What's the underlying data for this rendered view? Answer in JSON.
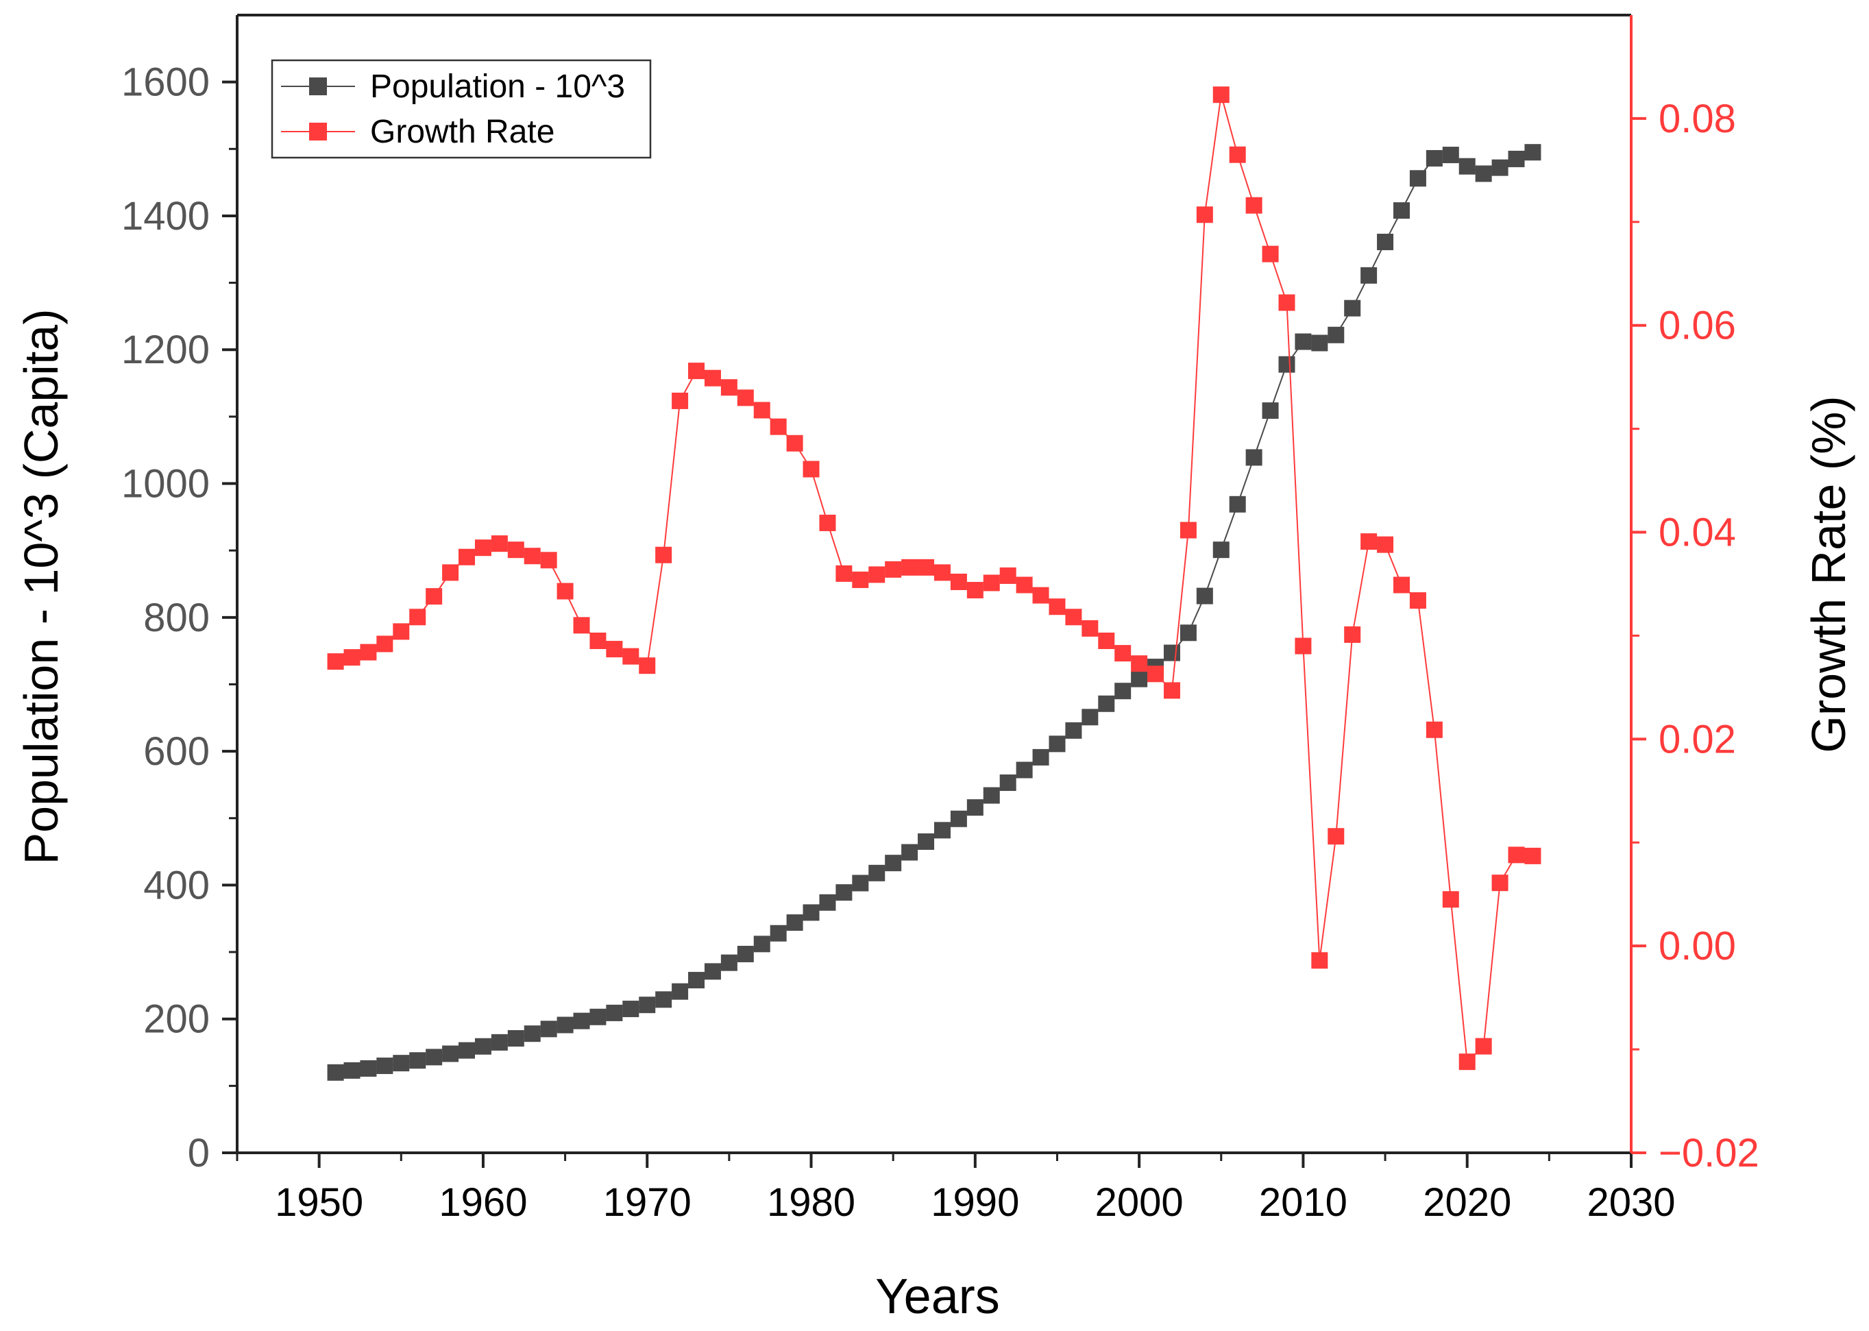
{
  "chart_data": {
    "type": "line",
    "title": "",
    "xlabel": "Years",
    "ylabel_left": "Population - 10^3 (Capita)",
    "ylabel_right": "Growth Rate (%)",
    "xlim": [
      1945,
      2030
    ],
    "ylim_left": [
      0,
      1700
    ],
    "ylim_right": [
      -0.02,
      0.09
    ],
    "x_ticks": [
      "1950",
      "1960",
      "1970",
      "1980",
      "1990",
      "2000",
      "2010",
      "2020",
      "2030"
    ],
    "y_left_ticks": [
      "0",
      "200",
      "400",
      "600",
      "800",
      "1000",
      "1200",
      "1400",
      "1600"
    ],
    "y_right_ticks": [
      "−0.02",
      "0.00",
      "0.02",
      "0.04",
      "0.06",
      "0.08"
    ],
    "legend_position": "top-left",
    "colors": {
      "population": "#4a4a4a",
      "growth": "#ff3b3b",
      "axis_left": "#222222",
      "axis_right": "#ff3b3b",
      "tick_text_left": "#555555"
    },
    "x": [
      1951,
      1952,
      1953,
      1954,
      1955,
      1956,
      1957,
      1958,
      1959,
      1960,
      1961,
      1962,
      1963,
      1964,
      1965,
      1966,
      1967,
      1968,
      1969,
      1970,
      1971,
      1972,
      1973,
      1974,
      1975,
      1976,
      1977,
      1978,
      1979,
      1980,
      1981,
      1982,
      1983,
      1984,
      1985,
      1986,
      1987,
      1988,
      1989,
      1990,
      1991,
      1992,
      1993,
      1994,
      1995,
      1996,
      1997,
      1998,
      1999,
      2000,
      2001,
      2002,
      2003,
      2004,
      2005,
      2006,
      2007,
      2008,
      2009,
      2010,
      2011,
      2012,
      2013,
      2014,
      2015,
      2016,
      2017,
      2018,
      2019,
      2020,
      2021,
      2022,
      2023,
      2024
    ],
    "series": [
      {
        "name": "Population - 10^3",
        "axis": "left",
        "values": [
          120,
          123,
          126,
          130,
          134,
          138,
          143,
          148,
          153,
          159,
          165,
          171,
          178,
          185,
          191,
          197,
          203,
          209,
          215,
          221,
          229,
          241,
          258,
          271,
          284,
          297,
          312,
          328,
          344,
          359,
          374,
          389,
          403,
          418,
          433,
          449,
          465,
          482,
          499,
          516,
          534,
          553,
          572,
          591,
          611,
          631,
          651,
          671,
          690,
          708,
          726,
          747,
          777,
          832,
          901,
          969,
          1039,
          1109,
          1178,
          1212,
          1210,
          1222,
          1262,
          1311,
          1361,
          1408,
          1456,
          1486,
          1491,
          1474,
          1463,
          1472,
          1485,
          1495
        ]
      },
      {
        "name": "Growth Rate",
        "axis": "right",
        "values": [
          0.0275,
          0.0279,
          0.0284,
          0.0292,
          0.0304,
          0.0318,
          0.0338,
          0.0361,
          0.0376,
          0.0385,
          0.0389,
          0.0383,
          0.0377,
          0.0373,
          0.0343,
          0.031,
          0.0295,
          0.0287,
          0.028,
          0.0271,
          0.0378,
          0.0527,
          0.0556,
          0.0549,
          0.054,
          0.053,
          0.0518,
          0.0502,
          0.0486,
          0.0461,
          0.0409,
          0.036,
          0.0354,
          0.0359,
          0.0364,
          0.0366,
          0.0366,
          0.0361,
          0.0352,
          0.0344,
          0.0351,
          0.0358,
          0.0349,
          0.0339,
          0.0328,
          0.0318,
          0.0307,
          0.0295,
          0.0283,
          0.0273,
          0.0263,
          0.0247,
          0.0402,
          0.0707,
          0.0823,
          0.0765,
          0.0716,
          0.0669,
          0.0622,
          0.029,
          -0.0014,
          0.0106,
          0.0301,
          0.0391,
          0.0388,
          0.0349,
          0.0334,
          0.0209,
          0.0045,
          -0.0112,
          -0.0097,
          0.0061,
          0.0088,
          0.0087
        ]
      }
    ]
  }
}
